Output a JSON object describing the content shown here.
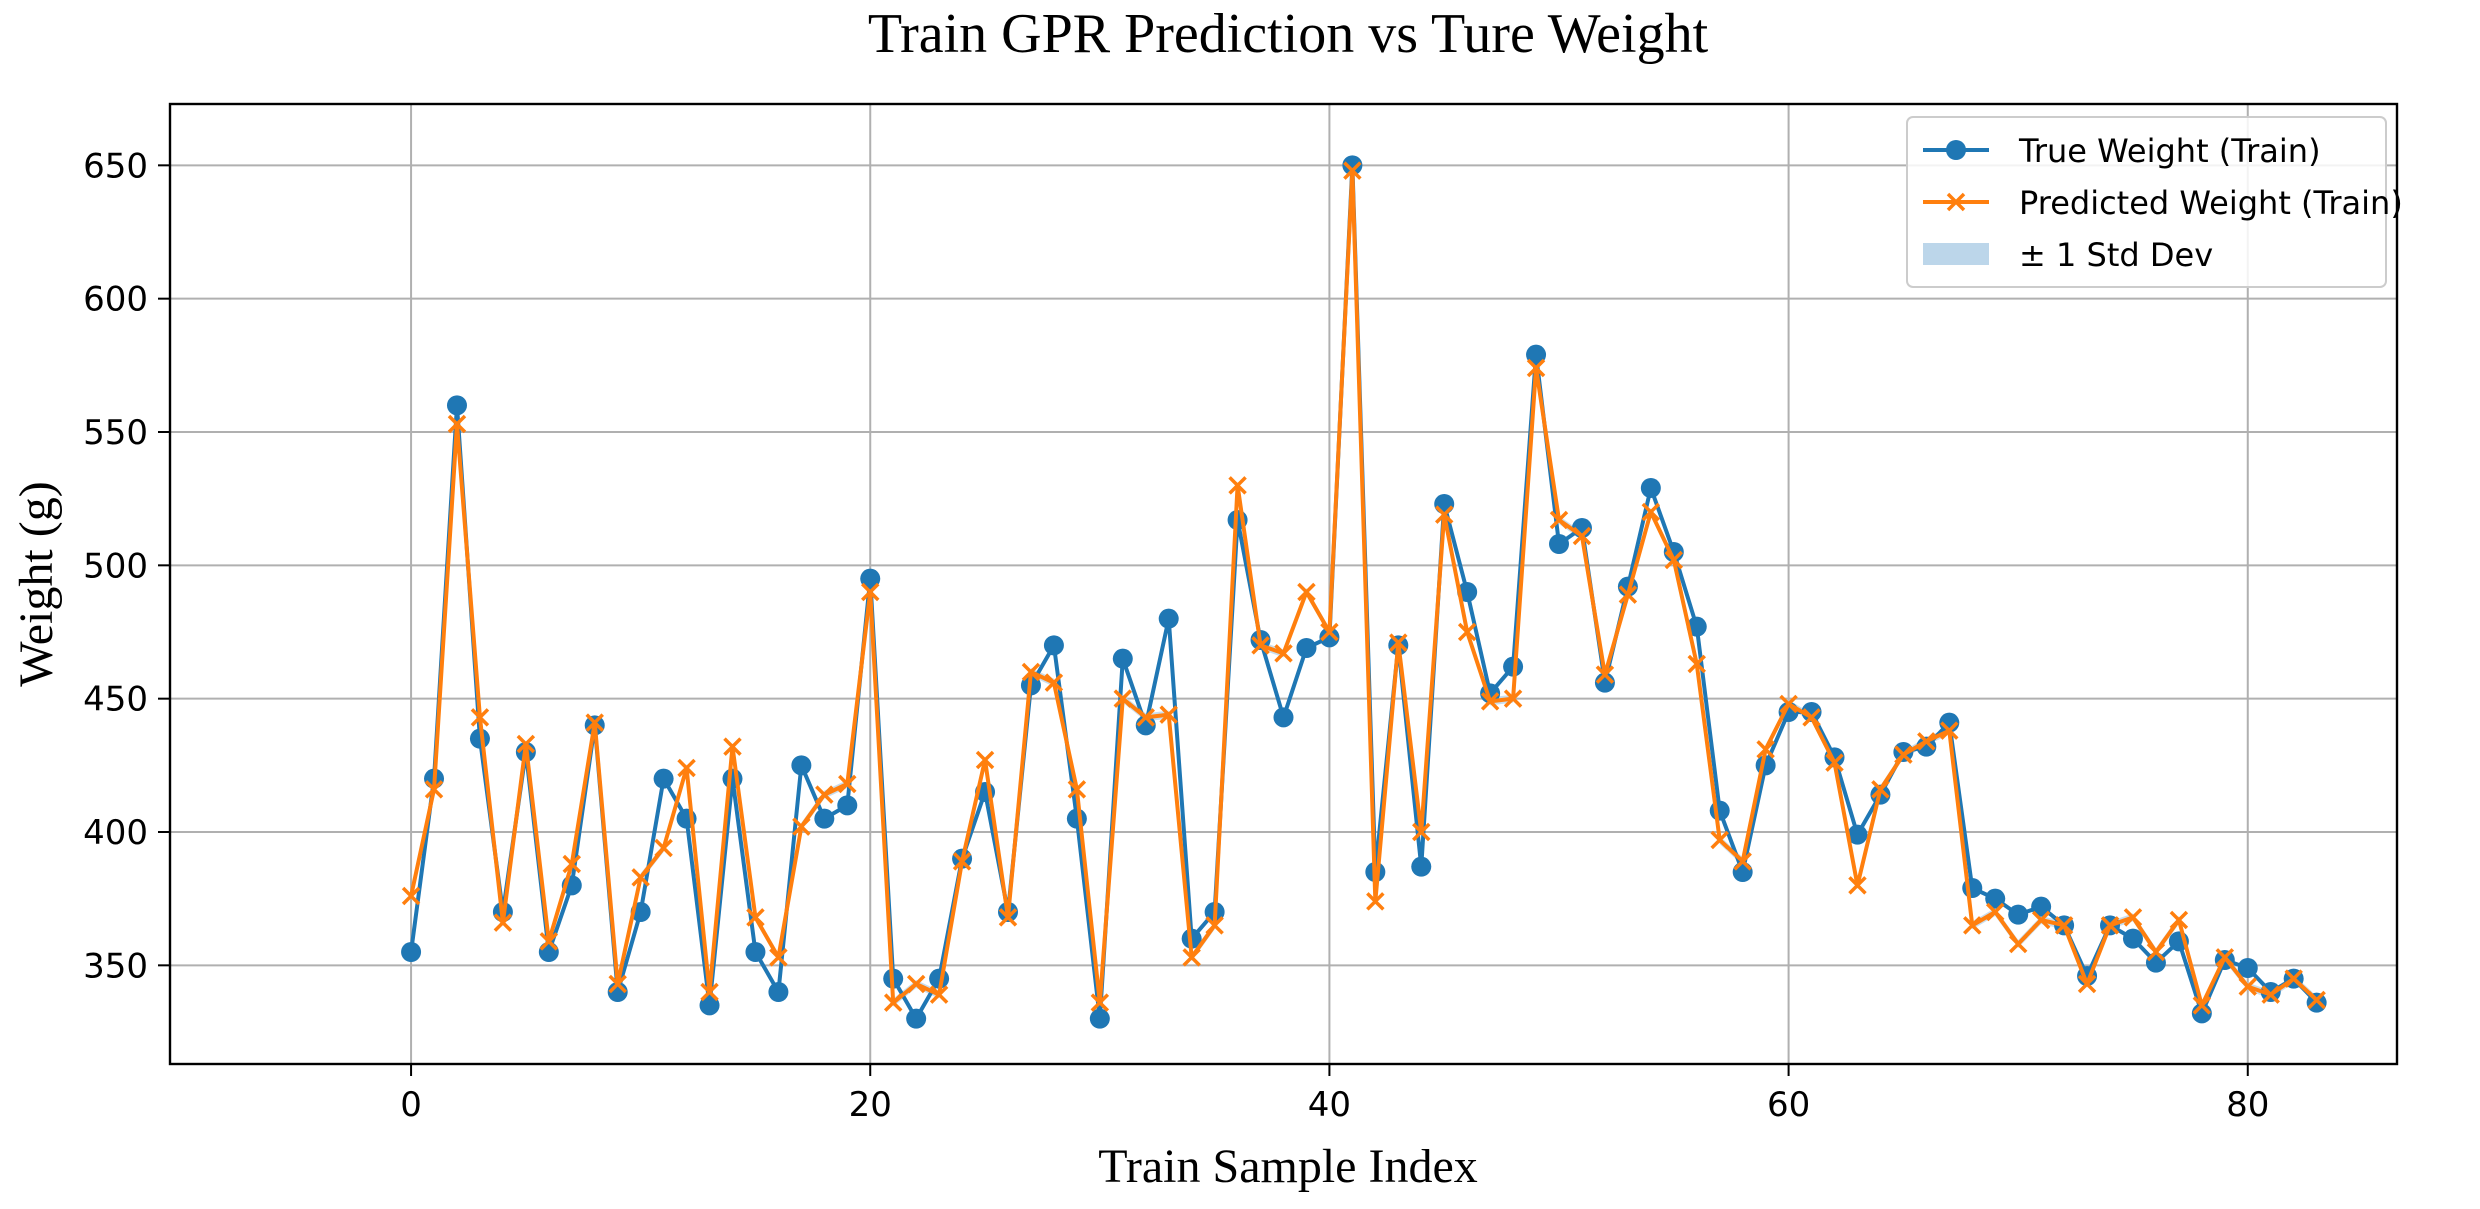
{
  "chart_data": {
    "type": "line",
    "title": "Train GPR Prediction vs Ture Weight",
    "xlabel": "Train Sample Index",
    "ylabel": "Weight (g)",
    "xlim": [
      -10.5,
      86.5
    ],
    "ylim": [
      313,
      673
    ],
    "xticks": [
      0,
      20,
      40,
      60,
      80
    ],
    "yticks": [
      350,
      400,
      450,
      500,
      550,
      600,
      650
    ],
    "grid": true,
    "legend_position": "top-right",
    "colors": {
      "true": "#1f77b4",
      "pred": "#ff7f0e",
      "band": "#bcd6ea"
    },
    "legend": [
      {
        "label": "True Weight (Train)",
        "kind": "line-marker-circle",
        "color": "#1f77b4"
      },
      {
        "label": "Predicted Weight (Train)",
        "kind": "line-marker-x",
        "color": "#ff7f0e"
      },
      {
        "label": "± 1 Std Dev",
        "kind": "patch",
        "color": "#bcd6ea"
      }
    ],
    "series": [
      {
        "name": "True Weight (Train)",
        "marker": "circle",
        "values": [
          355,
          420,
          560,
          435,
          370,
          430,
          355,
          380,
          440,
          340,
          370,
          420,
          405,
          335,
          420,
          355,
          340,
          425,
          405,
          410,
          495,
          345,
          330,
          345,
          390,
          415,
          370,
          455,
          470,
          405,
          330,
          465,
          440,
          480,
          360,
          370,
          517,
          472,
          443,
          469,
          473,
          650,
          385,
          470,
          387,
          523,
          490,
          452,
          462,
          579,
          508,
          514,
          456,
          492,
          529,
          505,
          477,
          408,
          385,
          425,
          445,
          445,
          428,
          399,
          414,
          430,
          432,
          441,
          379,
          375,
          369,
          372,
          365,
          346,
          365,
          360,
          351,
          359,
          332,
          352,
          349,
          340,
          345,
          336
        ]
      },
      {
        "name": "Predicted Weight (Train)",
        "marker": "x",
        "values": [
          376,
          416,
          553,
          443,
          366,
          433,
          359,
          388,
          441,
          343,
          383,
          394,
          424,
          340,
          432,
          368,
          353,
          402,
          414,
          418,
          490,
          336,
          343,
          339,
          389,
          427,
          368,
          460,
          456,
          416,
          336,
          450,
          443,
          444,
          353,
          365,
          530,
          470,
          467,
          490,
          475,
          648,
          374,
          471,
          400,
          519,
          475,
          449,
          450,
          574,
          517,
          511,
          459,
          489,
          520,
          502,
          463,
          397,
          389,
          431,
          448,
          443,
          426,
          380,
          416,
          429,
          434,
          438,
          365,
          370,
          358,
          367,
          365,
          343,
          365,
          368,
          355,
          367,
          335,
          353,
          342,
          339,
          345,
          337
        ]
      }
    ]
  }
}
